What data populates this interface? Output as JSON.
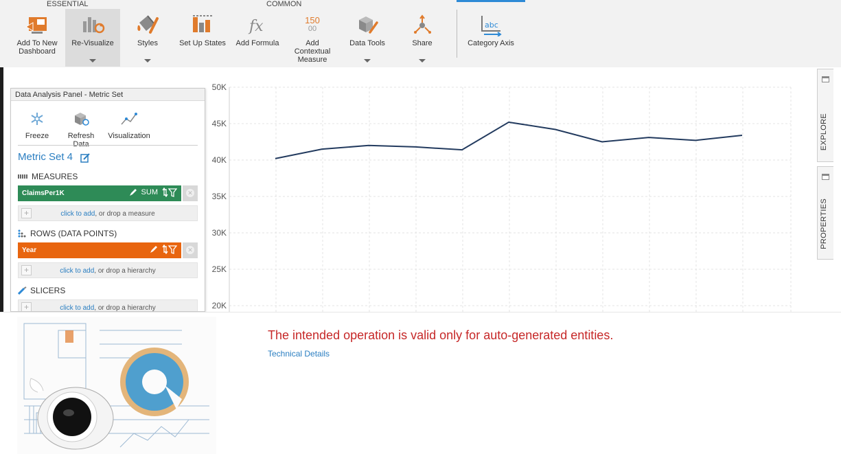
{
  "toolbar": {
    "groups": {
      "essential": "ESSENTIAL",
      "common": "COMMON"
    },
    "tools": [
      {
        "label": "Add To New Dashboard"
      },
      {
        "label": "Re-Visualize"
      },
      {
        "label": "Styles"
      },
      {
        "label": "Set Up States"
      },
      {
        "label": "Add Formula"
      },
      {
        "label": "Add Contextual Measure",
        "icon_text": "150",
        "icon_subtext": "00"
      },
      {
        "label": "Data Tools"
      },
      {
        "label": "Share"
      },
      {
        "label": "Category Axis",
        "icon_text": "abc"
      }
    ]
  },
  "panel": {
    "title": "Data Analysis Panel - Metric Set",
    "tools": [
      "Freeze",
      "Refresh Data",
      "Visualization"
    ],
    "metric_set": "Metric Set 4",
    "measures": {
      "heading": "MEASURES",
      "pill": "ClaimsPer1K",
      "agg": "SUM",
      "drop_link": "click to add",
      "drop_rest": ", or drop a measure"
    },
    "rows": {
      "heading": "ROWS (DATA POINTS)",
      "pill": "Year",
      "drop_link": "click to add",
      "drop_rest": ", or drop a hierarchy"
    },
    "slicers": {
      "heading": "SLICERS",
      "drop_link": "click to add",
      "drop_rest": ", or drop a hierarchy"
    }
  },
  "side_tabs": {
    "explore": "EXPLORE",
    "properties": "PROPERTIES"
  },
  "error": {
    "message": "The intended operation is valid only for auto-generated entities.",
    "details_link": "Technical Details"
  },
  "chart_data": {
    "type": "line",
    "yticks": [
      "50K",
      "45K",
      "40K",
      "35K",
      "30K",
      "25K",
      "20K"
    ],
    "ylim": [
      20000,
      50000
    ],
    "y_visible_min": 19000,
    "series": [
      {
        "color": "#223a5e",
        "values": [
          40200,
          41500,
          42000,
          41800,
          41400,
          45200,
          44200,
          42500,
          43100,
          42700,
          43400
        ]
      }
    ],
    "colors": {
      "line": "#223a5e",
      "measure_pill": "#2e8b57",
      "row_pill": "#e8650f",
      "error": "#c62828",
      "link": "#2a7ec1"
    }
  }
}
